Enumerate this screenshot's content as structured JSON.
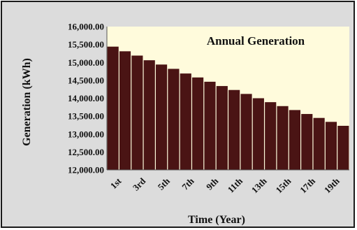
{
  "chart_data": {
    "type": "bar",
    "title": "Annual Generation",
    "xlabel": "Time (Year)",
    "ylabel": "Generation (kWh)",
    "ylim": [
      12000,
      16000
    ],
    "yticks": [
      "16,000.00",
      "15,500.00",
      "15,000.00",
      "14,500.00",
      "14,000.00",
      "13,500.00",
      "13,000.00",
      "12,500.00",
      "12,000.00"
    ],
    "ytick_values": [
      16000,
      15500,
      15000,
      14500,
      14000,
      13500,
      13000,
      12500,
      12000
    ],
    "xtick_labels": [
      "1st",
      "3rd",
      "5th",
      "7th",
      "9th",
      "11th",
      "13th",
      "15th",
      "17th",
      "19th"
    ],
    "categories": [
      "1st",
      "2nd",
      "3rd",
      "4th",
      "5th",
      "6th",
      "7th",
      "8th",
      "9th",
      "10th",
      "11th",
      "12th",
      "13th",
      "14th",
      "15th",
      "16th",
      "17th",
      "18th",
      "19th",
      "20th"
    ],
    "values": [
      15440,
      15310,
      15190,
      15060,
      14940,
      14820,
      14690,
      14580,
      14460,
      14340,
      14230,
      14120,
      14000,
      13890,
      13780,
      13670,
      13560,
      13450,
      13340,
      13230
    ],
    "bar_color": "#4a1414",
    "plot_background": "#fffbdc",
    "background": "#dcdcdc",
    "grid": false,
    "legend": "none"
  }
}
